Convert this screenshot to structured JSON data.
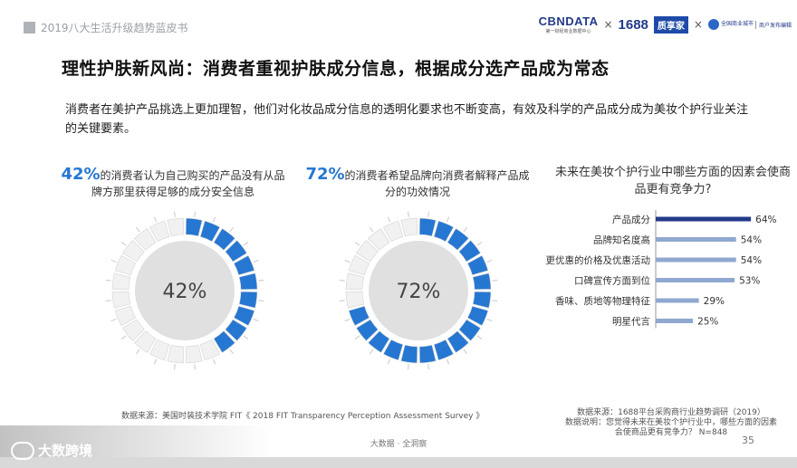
{
  "header": {
    "report_title": "2019八大生活升级趋势蓝皮书"
  },
  "logos": {
    "cbndata": "CBNDATA",
    "cbndata_sub": "第一财经商业数据中心",
    "separator": "×",
    "alibaba_1688": "1688",
    "box_logo": "质享家",
    "commerce_sub1": "全国商业城市",
    "commerce_sub2": "商户发布编辑"
  },
  "title": "理性护肤新风尚：消费者重视护肤成分信息，根据成分选产品成为常态",
  "intro": "消费者在美护产品挑选上更加理智，他们对化妆品成分信息的透明化要求也不断变高，有效及科学的产品成分成为美妆个护行业关注的关键要素。",
  "stat1": {
    "pct_text": "42%",
    "text": "的消费者认为自己购买的产品没有从品牌方那里获得足够的成分安全信息"
  },
  "stat2": {
    "pct_text": "72%",
    "text": "的消费者希望品牌向消费者解释产品成分的功效情况"
  },
  "bar_section": {
    "title": "未来在美妆个护行业中哪些方面的因素会使商品更有竞争力?"
  },
  "colors": {
    "accent": "#2677d2",
    "bar_top": "#23398a",
    "bar_other": "#8fa8cf",
    "segment_empty": "#f1f1f1",
    "donut_center": "#e0e0e0",
    "tick": "#c8c8c8"
  },
  "chart_data": [
    {
      "type": "pie",
      "title": "",
      "center_label": "42%",
      "value": 42,
      "segments": 24
    },
    {
      "type": "pie",
      "title": "",
      "center_label": "72%",
      "value": 72,
      "segments": 24
    },
    {
      "type": "bar",
      "orientation": "horizontal",
      "title": "未来在美妆个护行业中哪些方面的因素会使商品更有竞争力?",
      "categories": [
        "产品成分",
        "品牌知名度高",
        "更优惠的价格及优惠活动",
        "口碑宣传方面到位",
        "香味、质地等物理特征",
        "明星代言"
      ],
      "values": [
        64,
        54,
        54,
        53,
        29,
        25
      ],
      "value_labels": [
        "64%",
        "54%",
        "54%",
        "53%",
        "29%",
        "25%"
      ],
      "xlim": [
        0,
        70
      ]
    }
  ],
  "sources": {
    "left": "数据来源：美国时装技术学院 FIT《 2018 FIT Transparency Perception Assessment Survey 》",
    "right_1": "数据来源：1688平台采购商行业趋势调研（2019）",
    "right_2": "数据说明：您觉得未来在美妆个护行业中，哪些方面的因素会使商品更有竞争力？ N=848"
  },
  "footer": {
    "center": "大数据 · 全洞察",
    "page": "35",
    "watermark": "大数跨境"
  }
}
